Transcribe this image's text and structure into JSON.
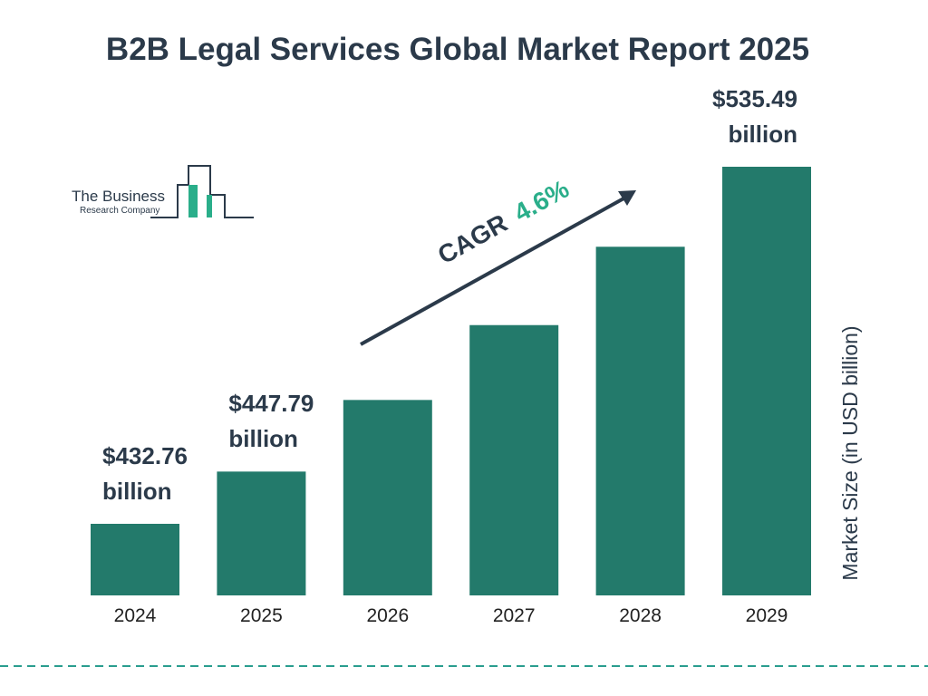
{
  "logo": {
    "line1": "The Business",
    "line2": "Research Company"
  },
  "chart_data": {
    "type": "bar",
    "title": "B2B Legal Services Global Market Report 2025",
    "categories": [
      "2024",
      "2025",
      "2026",
      "2027",
      "2028",
      "2029"
    ],
    "values": [
      432.76,
      447.79,
      468.39,
      489.93,
      512.47,
      535.49
    ],
    "value_labels": [
      "$432.76 billion",
      "$447.79 billion",
      null,
      null,
      null,
      "$535.49 billion"
    ],
    "color": "#237a6b",
    "y_label": "Market Size (in USD billion)",
    "cagr_label": "CAGR",
    "cagr_value": "4.6%"
  }
}
